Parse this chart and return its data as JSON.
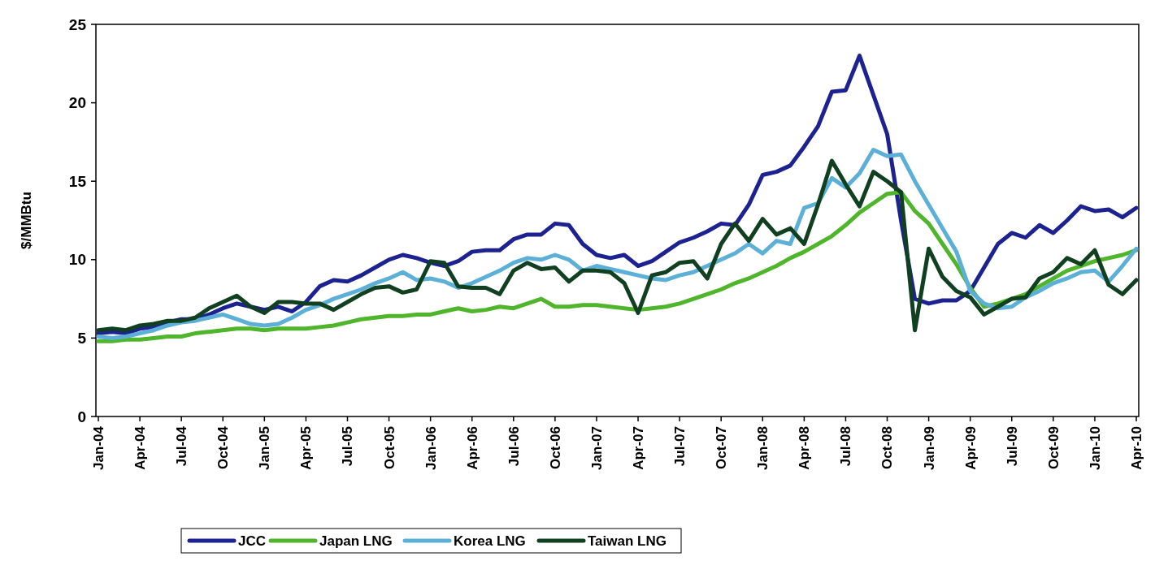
{
  "chart_data": {
    "type": "line",
    "ylabel": "$/MMBtu",
    "categories": [
      "Jan-04",
      null,
      null,
      "Apr-04",
      null,
      null,
      "Jul-04",
      null,
      null,
      "Oct-04",
      null,
      null,
      "Jan-05",
      null,
      null,
      "Apr-05",
      null,
      null,
      "Jul-05",
      null,
      null,
      "Oct-05",
      null,
      null,
      "Jan-06",
      null,
      null,
      "Apr-06",
      null,
      null,
      "Jul-06",
      null,
      null,
      "Oct-06",
      null,
      null,
      "Jan-07",
      null,
      null,
      "Apr-07",
      null,
      null,
      "Jul-07",
      null,
      null,
      "Oct-07",
      null,
      null,
      "Jan-08",
      null,
      null,
      "Apr-08",
      null,
      null,
      "Jul-08",
      null,
      null,
      "Oct-08",
      null,
      null,
      "Jan-09",
      null,
      null,
      "Apr-09",
      null,
      null,
      "Jul-09",
      null,
      null,
      "Oct-09",
      null,
      null,
      "Jan-10",
      null,
      null,
      "Apr-10"
    ],
    "series": [
      {
        "name": "JCC",
        "color": "#1c2290",
        "values": [
          5.3,
          5.4,
          5.3,
          5.6,
          5.7,
          6.0,
          6.2,
          6.2,
          6.5,
          6.9,
          7.2,
          7.0,
          6.8,
          7.0,
          6.7,
          7.3,
          8.3,
          8.7,
          8.6,
          9.0,
          9.5,
          10.0,
          10.3,
          10.1,
          9.8,
          9.6,
          9.9,
          10.5,
          10.6,
          10.6,
          11.3,
          11.6,
          11.6,
          12.3,
          12.2,
          11.0,
          10.3,
          10.1,
          10.3,
          9.6,
          9.9,
          10.5,
          11.1,
          11.4,
          11.8,
          12.3,
          12.2,
          13.5,
          15.4,
          15.6,
          16.0,
          17.2,
          18.5,
          20.7,
          20.8,
          23.0,
          20.5,
          18.0,
          12.5,
          7.5,
          7.2,
          7.4,
          7.4,
          8.0,
          9.5,
          11.0,
          11.7,
          11.4,
          12.2,
          11.7,
          12.5,
          13.4,
          13.1,
          13.2,
          12.7,
          13.3
        ]
      },
      {
        "name": "Japan LNG",
        "color": "#4fb52b",
        "values": [
          4.8,
          4.8,
          4.9,
          4.9,
          5.0,
          5.1,
          5.1,
          5.3,
          5.4,
          5.5,
          5.6,
          5.6,
          5.5,
          5.6,
          5.6,
          5.6,
          5.7,
          5.8,
          6.0,
          6.2,
          6.3,
          6.4,
          6.4,
          6.5,
          6.5,
          6.7,
          6.9,
          6.7,
          6.8,
          7.0,
          6.9,
          7.2,
          7.5,
          7.0,
          7.0,
          7.1,
          7.1,
          7.0,
          6.9,
          6.8,
          6.9,
          7.0,
          7.2,
          7.5,
          7.8,
          8.1,
          8.5,
          8.8,
          9.2,
          9.6,
          10.1,
          10.5,
          11.0,
          11.5,
          12.2,
          13.0,
          13.6,
          14.2,
          14.3,
          13.1,
          12.3,
          11.0,
          9.7,
          8.2,
          7.0,
          7.2,
          7.5,
          7.8,
          8.3,
          8.8,
          9.3,
          9.6,
          9.9,
          10.1,
          10.3,
          10.6
        ]
      },
      {
        "name": "Korea LNG",
        "color": "#5cb0d8",
        "values": [
          5.1,
          5.0,
          5.1,
          5.3,
          5.5,
          5.8,
          6.0,
          6.1,
          6.3,
          6.5,
          6.2,
          5.9,
          5.8,
          5.9,
          6.3,
          6.8,
          7.1,
          7.5,
          7.8,
          8.1,
          8.5,
          8.8,
          9.2,
          8.7,
          8.8,
          8.6,
          8.2,
          8.5,
          8.9,
          9.3,
          9.8,
          10.1,
          10.0,
          10.3,
          10.0,
          9.3,
          9.6,
          9.4,
          9.2,
          9.0,
          8.8,
          8.7,
          9.0,
          9.2,
          9.6,
          10.0,
          10.4,
          11.0,
          10.4,
          11.2,
          11.0,
          13.3,
          13.6,
          15.2,
          14.6,
          15.5,
          17.0,
          16.6,
          16.7,
          15.0,
          13.5,
          12.0,
          10.5,
          8.0,
          7.2,
          6.9,
          7.0,
          7.6,
          8.0,
          8.5,
          8.8,
          9.2,
          9.3,
          8.6,
          9.6,
          10.7
        ]
      },
      {
        "name": "Taiwan LNG",
        "color": "#10401f",
        "values": [
          5.5,
          5.6,
          5.5,
          5.8,
          5.9,
          6.1,
          6.1,
          6.3,
          6.9,
          7.3,
          7.7,
          7.0,
          6.6,
          7.3,
          7.3,
          7.2,
          7.2,
          6.8,
          7.3,
          7.8,
          8.2,
          8.3,
          7.9,
          8.1,
          9.9,
          9.8,
          8.3,
          8.2,
          8.2,
          7.8,
          9.3,
          9.8,
          9.4,
          9.5,
          8.6,
          9.3,
          9.3,
          9.2,
          8.5,
          6.6,
          9.0,
          9.2,
          9.8,
          9.9,
          8.8,
          11.0,
          12.3,
          11.2,
          12.6,
          11.6,
          12.0,
          11.0,
          13.5,
          16.3,
          14.8,
          13.4,
          15.6,
          15.0,
          14.3,
          5.5,
          10.7,
          8.9,
          8.0,
          7.6,
          6.5,
          7.0,
          7.5,
          7.6,
          8.8,
          9.2,
          10.1,
          9.7,
          10.6,
          8.4,
          7.8,
          8.7
        ]
      }
    ],
    "ylim": [
      0,
      25
    ],
    "yticks": [
      0,
      5,
      10,
      15,
      20,
      25
    ],
    "grid": false,
    "legend": "bottom",
    "line_style": "solid",
    "marker": "none"
  }
}
